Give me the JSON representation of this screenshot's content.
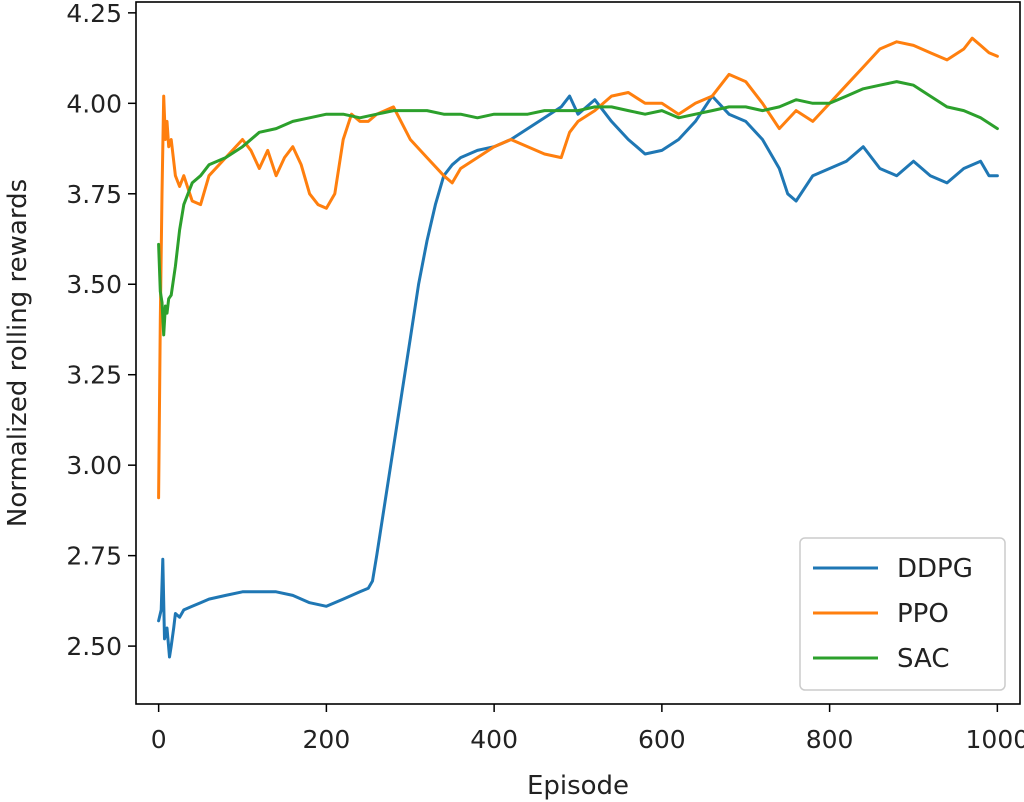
{
  "chart_data": {
    "type": "line",
    "title": "",
    "xlabel": "Episode",
    "ylabel": "Normalized rolling rewards",
    "xlim": [
      -27,
      1027
    ],
    "ylim": [
      2.34,
      4.28
    ],
    "xticks": [
      0,
      200,
      400,
      600,
      800,
      1000
    ],
    "xtick_labels": [
      "0",
      "200",
      "400",
      "600",
      "800",
      "1000"
    ],
    "yticks": [
      2.5,
      2.75,
      3.0,
      3.25,
      3.5,
      3.75,
      4.0,
      4.25
    ],
    "ytick_labels": [
      "2.50",
      "2.75",
      "3.00",
      "3.25",
      "3.50",
      "3.75",
      "4.00",
      "4.25"
    ],
    "grid": false,
    "legend": "lower-right",
    "series": [
      {
        "name": "DDPG",
        "color": "#1f77b4",
        "x": [
          0,
          3,
          5,
          7,
          10,
          13,
          15,
          18,
          20,
          25,
          30,
          40,
          50,
          60,
          80,
          100,
          120,
          140,
          160,
          180,
          200,
          220,
          240,
          250,
          255,
          260,
          270,
          280,
          290,
          300,
          310,
          320,
          330,
          340,
          350,
          360,
          380,
          400,
          420,
          440,
          460,
          480,
          490,
          500,
          520,
          540,
          560,
          570,
          580,
          600,
          620,
          640,
          660,
          680,
          700,
          720,
          740,
          750,
          760,
          780,
          800,
          820,
          840,
          860,
          880,
          900,
          920,
          940,
          960,
          980,
          990,
          1000
        ],
        "y": [
          2.57,
          2.6,
          2.74,
          2.52,
          2.55,
          2.47,
          2.5,
          2.55,
          2.59,
          2.58,
          2.6,
          2.61,
          2.62,
          2.63,
          2.64,
          2.65,
          2.65,
          2.65,
          2.64,
          2.62,
          2.61,
          2.63,
          2.65,
          2.66,
          2.68,
          2.75,
          2.9,
          3.05,
          3.2,
          3.35,
          3.5,
          3.62,
          3.72,
          3.8,
          3.83,
          3.85,
          3.87,
          3.88,
          3.9,
          3.93,
          3.96,
          3.99,
          4.02,
          3.97,
          4.01,
          3.95,
          3.9,
          3.88,
          3.86,
          3.87,
          3.9,
          3.95,
          4.02,
          3.97,
          3.95,
          3.9,
          3.82,
          3.75,
          3.73,
          3.8,
          3.82,
          3.84,
          3.88,
          3.82,
          3.8,
          3.84,
          3.8,
          3.78,
          3.82,
          3.84,
          3.8,
          3.8
        ]
      },
      {
        "name": "PPO",
        "color": "#ff7f0e",
        "x": [
          0,
          2,
          4,
          6,
          8,
          10,
          12,
          15,
          20,
          25,
          30,
          40,
          50,
          60,
          80,
          100,
          110,
          120,
          130,
          140,
          150,
          160,
          170,
          180,
          190,
          200,
          210,
          220,
          230,
          240,
          250,
          260,
          280,
          300,
          320,
          340,
          350,
          360,
          380,
          400,
          420,
          440,
          460,
          480,
          490,
          500,
          520,
          540,
          560,
          580,
          600,
          620,
          640,
          660,
          680,
          700,
          720,
          740,
          760,
          780,
          800,
          820,
          840,
          860,
          880,
          900,
          920,
          940,
          960,
          970,
          980,
          990,
          1000
        ],
        "y": [
          2.91,
          3.4,
          3.75,
          4.02,
          3.9,
          3.95,
          3.88,
          3.9,
          3.8,
          3.77,
          3.8,
          3.73,
          3.72,
          3.8,
          3.85,
          3.9,
          3.87,
          3.82,
          3.87,
          3.8,
          3.85,
          3.88,
          3.83,
          3.75,
          3.72,
          3.71,
          3.75,
          3.9,
          3.97,
          3.95,
          3.95,
          3.97,
          3.99,
          3.9,
          3.85,
          3.8,
          3.78,
          3.82,
          3.85,
          3.88,
          3.9,
          3.88,
          3.86,
          3.85,
          3.92,
          3.95,
          3.98,
          4.02,
          4.03,
          4.0,
          4.0,
          3.97,
          4.0,
          4.02,
          4.08,
          4.06,
          4.0,
          3.93,
          3.98,
          3.95,
          4.0,
          4.05,
          4.1,
          4.15,
          4.17,
          4.16,
          4.14,
          4.12,
          4.15,
          4.18,
          4.16,
          4.14,
          4.13
        ]
      },
      {
        "name": "SAC",
        "color": "#2ca02c",
        "x": [
          0,
          2,
          4,
          6,
          8,
          10,
          12,
          15,
          20,
          25,
          30,
          40,
          50,
          60,
          80,
          100,
          120,
          140,
          160,
          180,
          200,
          220,
          240,
          260,
          280,
          300,
          320,
          340,
          360,
          380,
          400,
          420,
          440,
          460,
          480,
          500,
          520,
          540,
          560,
          580,
          600,
          620,
          640,
          660,
          680,
          700,
          720,
          740,
          760,
          780,
          800,
          820,
          840,
          860,
          880,
          900,
          920,
          940,
          960,
          980,
          1000
        ],
        "y": [
          3.61,
          3.48,
          3.45,
          3.36,
          3.44,
          3.42,
          3.46,
          3.47,
          3.55,
          3.65,
          3.72,
          3.78,
          3.8,
          3.83,
          3.85,
          3.88,
          3.92,
          3.93,
          3.95,
          3.96,
          3.97,
          3.97,
          3.96,
          3.97,
          3.98,
          3.98,
          3.98,
          3.97,
          3.97,
          3.96,
          3.97,
          3.97,
          3.97,
          3.98,
          3.98,
          3.98,
          3.99,
          3.99,
          3.98,
          3.97,
          3.98,
          3.96,
          3.97,
          3.98,
          3.99,
          3.99,
          3.98,
          3.99,
          4.01,
          4.0,
          4.0,
          4.02,
          4.04,
          4.05,
          4.06,
          4.05,
          4.02,
          3.99,
          3.98,
          3.96,
          3.93
        ]
      }
    ]
  }
}
